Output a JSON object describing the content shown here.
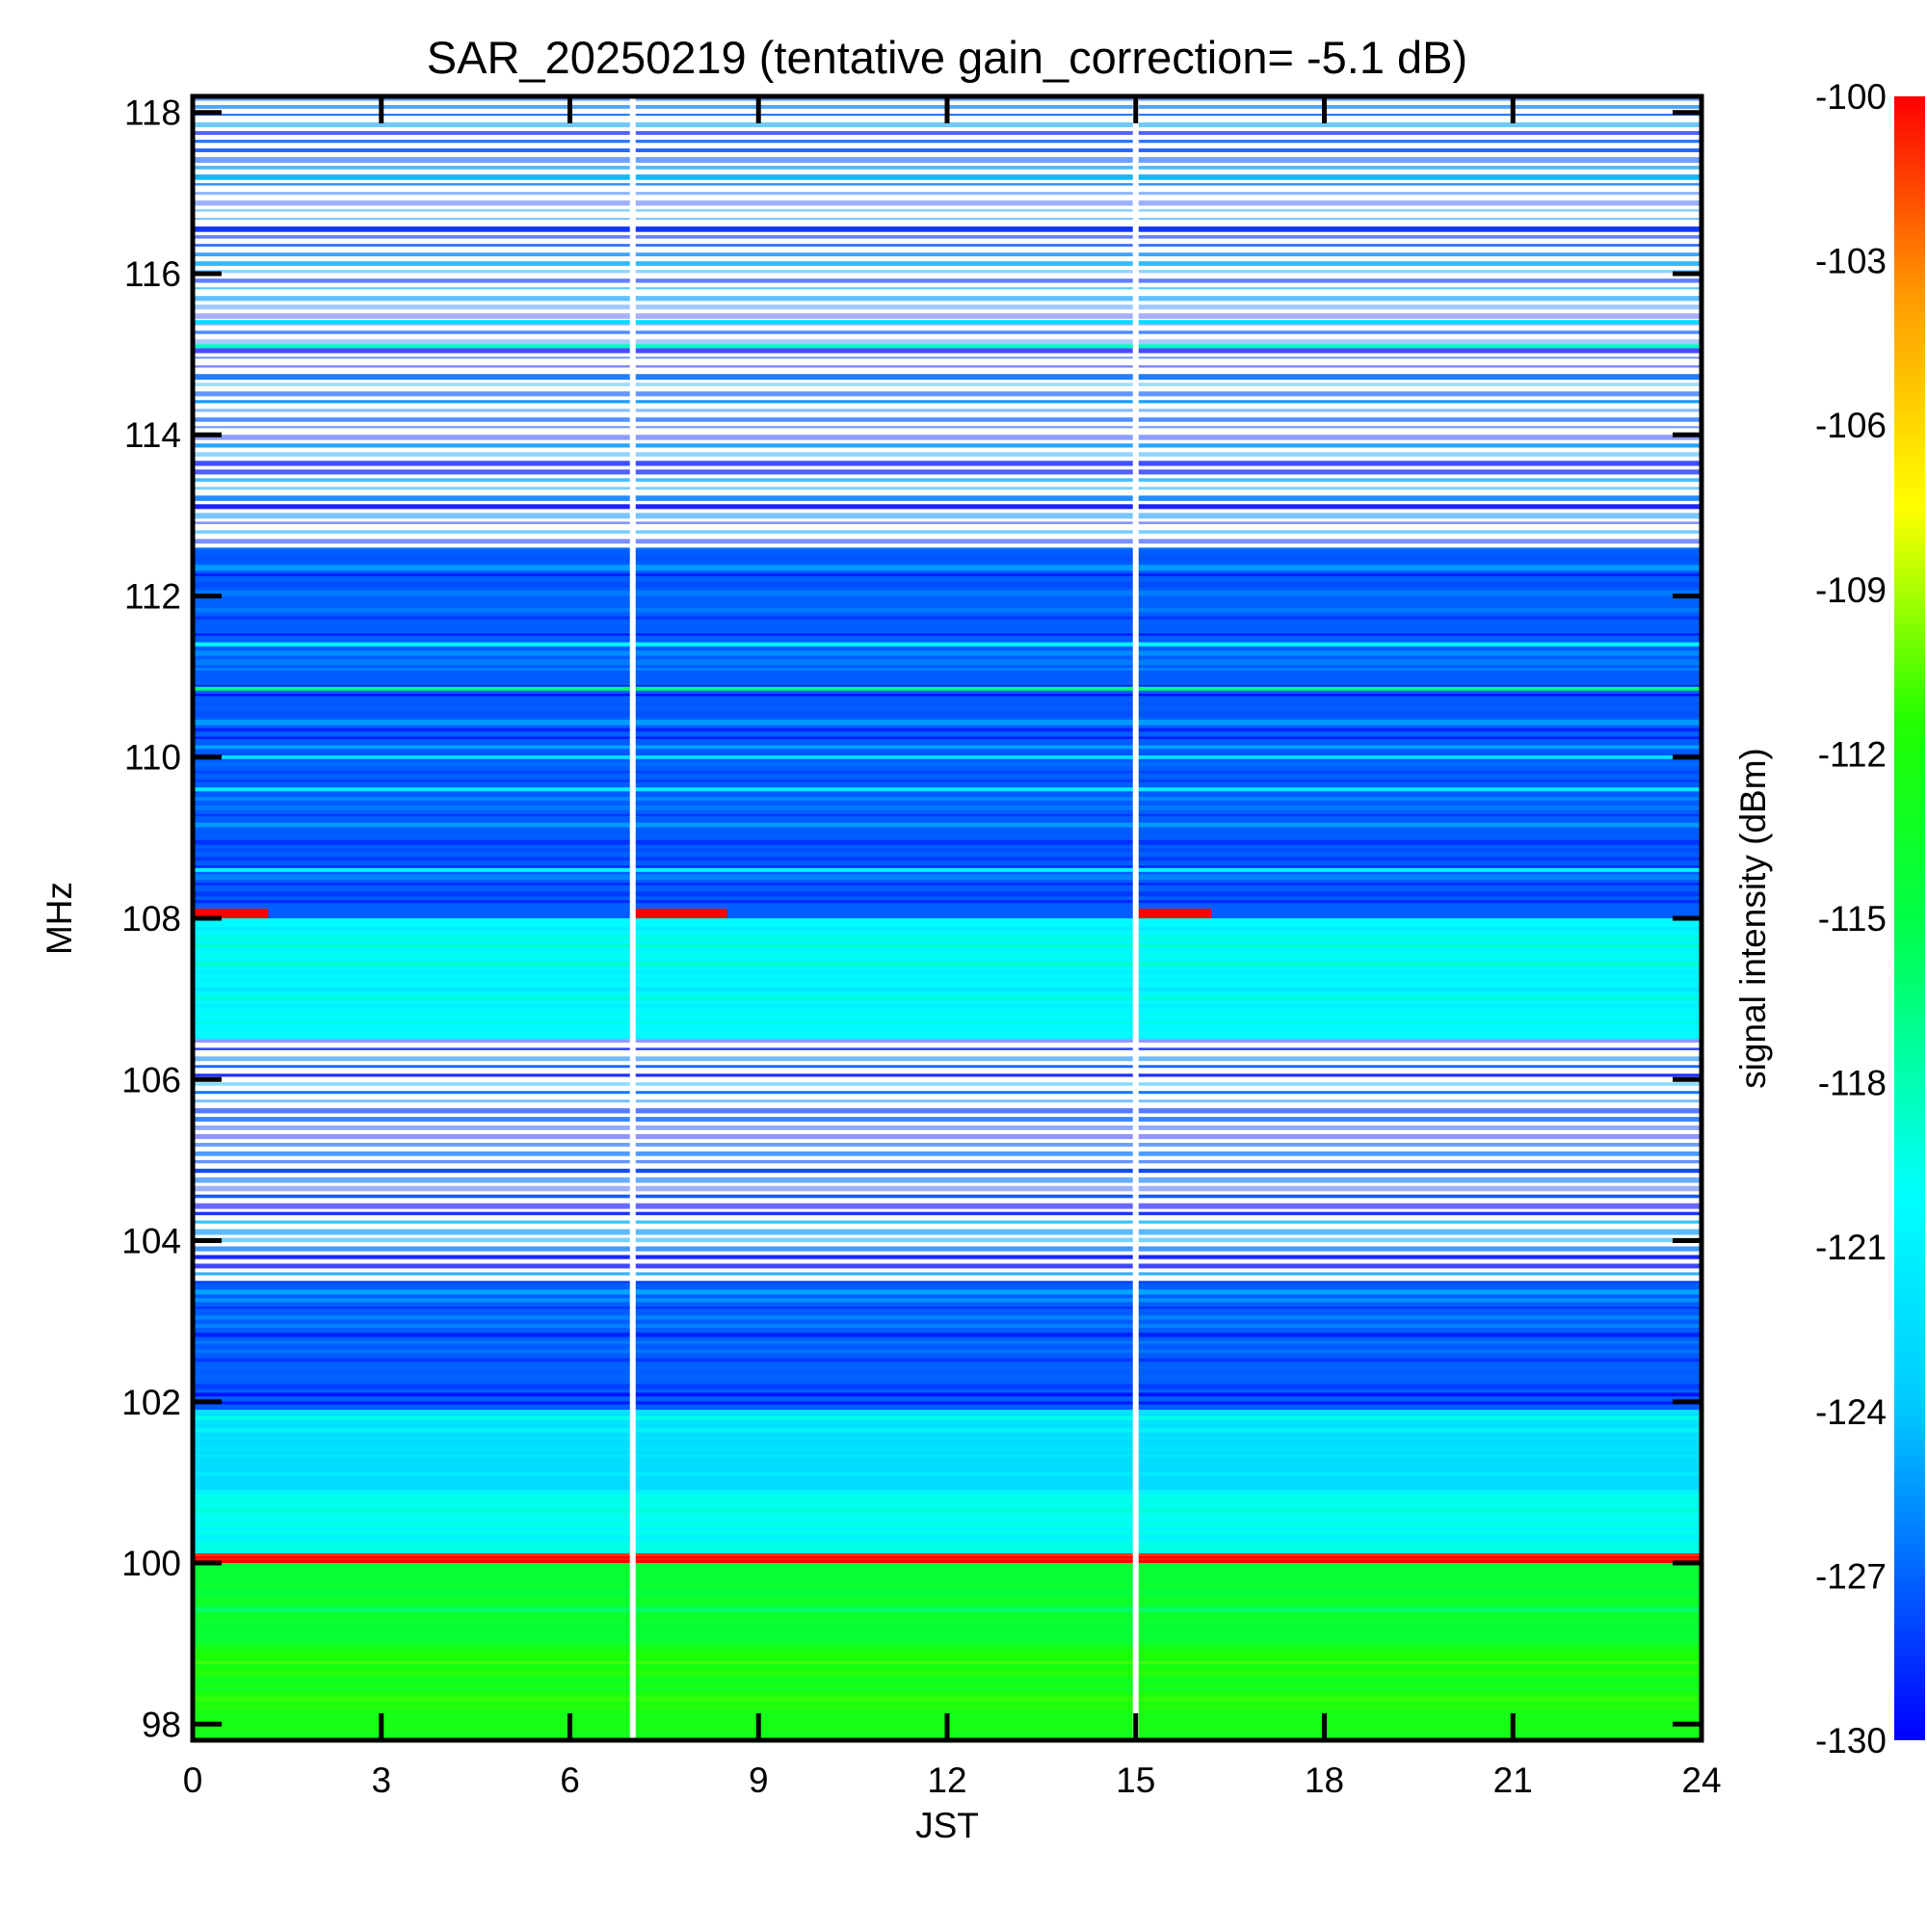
{
  "chart_data": {
    "type": "heatmap",
    "title": "SAR_20250219 (tentative gain_correction= -5.1 dB)",
    "xlabel": "JST",
    "ylabel": "MHz",
    "xlim": [
      0,
      24
    ],
    "ylim": [
      97.8,
      118.2
    ],
    "x_ticks": [
      "0",
      "3",
      "6",
      "9",
      "12",
      "15",
      "18",
      "21",
      "24"
    ],
    "x_tick_values": [
      0,
      3,
      6,
      9,
      12,
      15,
      18,
      21,
      24
    ],
    "y_ticks": [
      "98",
      "100",
      "102",
      "104",
      "106",
      "108",
      "110",
      "112",
      "114",
      "116",
      "118"
    ],
    "y_tick_values": [
      98,
      100,
      102,
      104,
      106,
      108,
      110,
      112,
      114,
      116,
      118
    ],
    "colorbar": {
      "label": "signal intensity (dBm)",
      "range": [
        -130,
        -100
      ],
      "ticks": [
        "-100",
        "-103",
        "-106",
        "-109",
        "-112",
        "-115",
        "-118",
        "-121",
        "-124",
        "-127",
        "-130"
      ],
      "tick_values": [
        -100,
        -103,
        -106,
        -109,
        -112,
        -115,
        -118,
        -121,
        -124,
        -127,
        -130
      ],
      "colormap": [
        "#0000ff",
        "#00c8ff",
        "#00ffff",
        "#00ff44",
        "#22ff00",
        "#ffff00",
        "#ff9900",
        "#ff0000"
      ]
    },
    "data_gaps_jst": [
      7.0,
      15.0
    ],
    "bands": [
      {
        "from_mhz": 97.8,
        "to_mhz": 99.0,
        "level_dbm": -114
      },
      {
        "from_mhz": 99.0,
        "to_mhz": 100.0,
        "level_dbm": -116
      },
      {
        "from_mhz": 100.0,
        "to_mhz": 100.12,
        "level_dbm": -100
      },
      {
        "from_mhz": 100.12,
        "to_mhz": 100.9,
        "level_dbm": -121
      },
      {
        "from_mhz": 100.9,
        "to_mhz": 101.9,
        "level_dbm": -124
      },
      {
        "from_mhz": 101.9,
        "to_mhz": 103.5,
        "level_dbm": -128
      },
      {
        "from_mhz": 103.5,
        "to_mhz": 106.5,
        "level_dbm": -130,
        "sparse": true
      },
      {
        "from_mhz": 106.5,
        "to_mhz": 108.0,
        "level_dbm": -122
      },
      {
        "from_mhz": 108.0,
        "to_mhz": 108.12,
        "level_dbm": -100,
        "partial": true
      },
      {
        "from_mhz": 108.12,
        "to_mhz": 112.6,
        "level_dbm": -128
      },
      {
        "from_mhz": 112.6,
        "to_mhz": 118.2,
        "level_dbm": -130,
        "sparse": true
      }
    ],
    "lines": [
      {
        "mhz": 110.85,
        "level_dbm": -118
      },
      {
        "mhz": 111.4,
        "level_dbm": -122
      },
      {
        "mhz": 109.6,
        "level_dbm": -123
      },
      {
        "mhz": 110.0,
        "level_dbm": -124
      },
      {
        "mhz": 108.6,
        "level_dbm": -122
      },
      {
        "mhz": 115.1,
        "level_dbm": -120
      },
      {
        "mhz": 115.4,
        "level_dbm": -124
      },
      {
        "mhz": 101.8,
        "level_dbm": -121
      }
    ]
  }
}
